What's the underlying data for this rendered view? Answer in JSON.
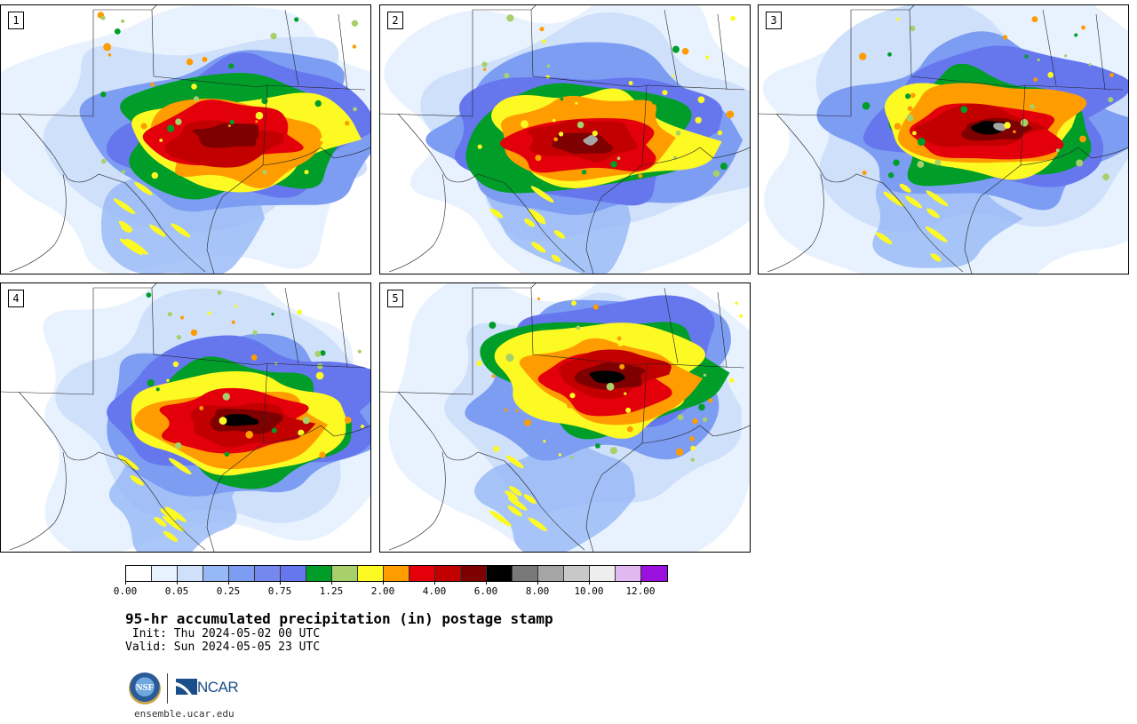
{
  "panels": [
    {
      "label": "1",
      "seed": 11
    },
    {
      "label": "2",
      "seed": 23
    },
    {
      "label": "3",
      "seed": 37
    },
    {
      "label": "4",
      "seed": 41
    },
    {
      "label": "5",
      "seed": 59
    }
  ],
  "colorbar": {
    "colors": [
      "#ffffff",
      "#e8f2fe",
      "#cfe0fb",
      "#96b8f6",
      "#7d9df3",
      "#7488ee",
      "#6677ee",
      "#009e29",
      "#a8d06a",
      "#fdf923",
      "#fe9c00",
      "#e4000b",
      "#c30000",
      "#7e0000",
      "#000000",
      "#787878",
      "#a5a5a5",
      "#c8c8c8",
      "#eeeeee",
      "#e1b8f0",
      "#9a11df"
    ],
    "tick_labels": [
      "0.00",
      "0.05",
      "0.25",
      "0.75",
      "1.25",
      "2.00",
      "4.00",
      "6.00",
      "8.00",
      "10.00",
      "12.00"
    ]
  },
  "title": "95-hr accumulated precipitation (in) postage stamp",
  "init": " Init: Thu 2024-05-02 00 UTC",
  "valid": "Valid: Sun 2024-05-05 23 UTC",
  "logos": {
    "nsf": "NSF",
    "ncar": "NCAR"
  },
  "url": "ensemble.ucar.edu"
}
